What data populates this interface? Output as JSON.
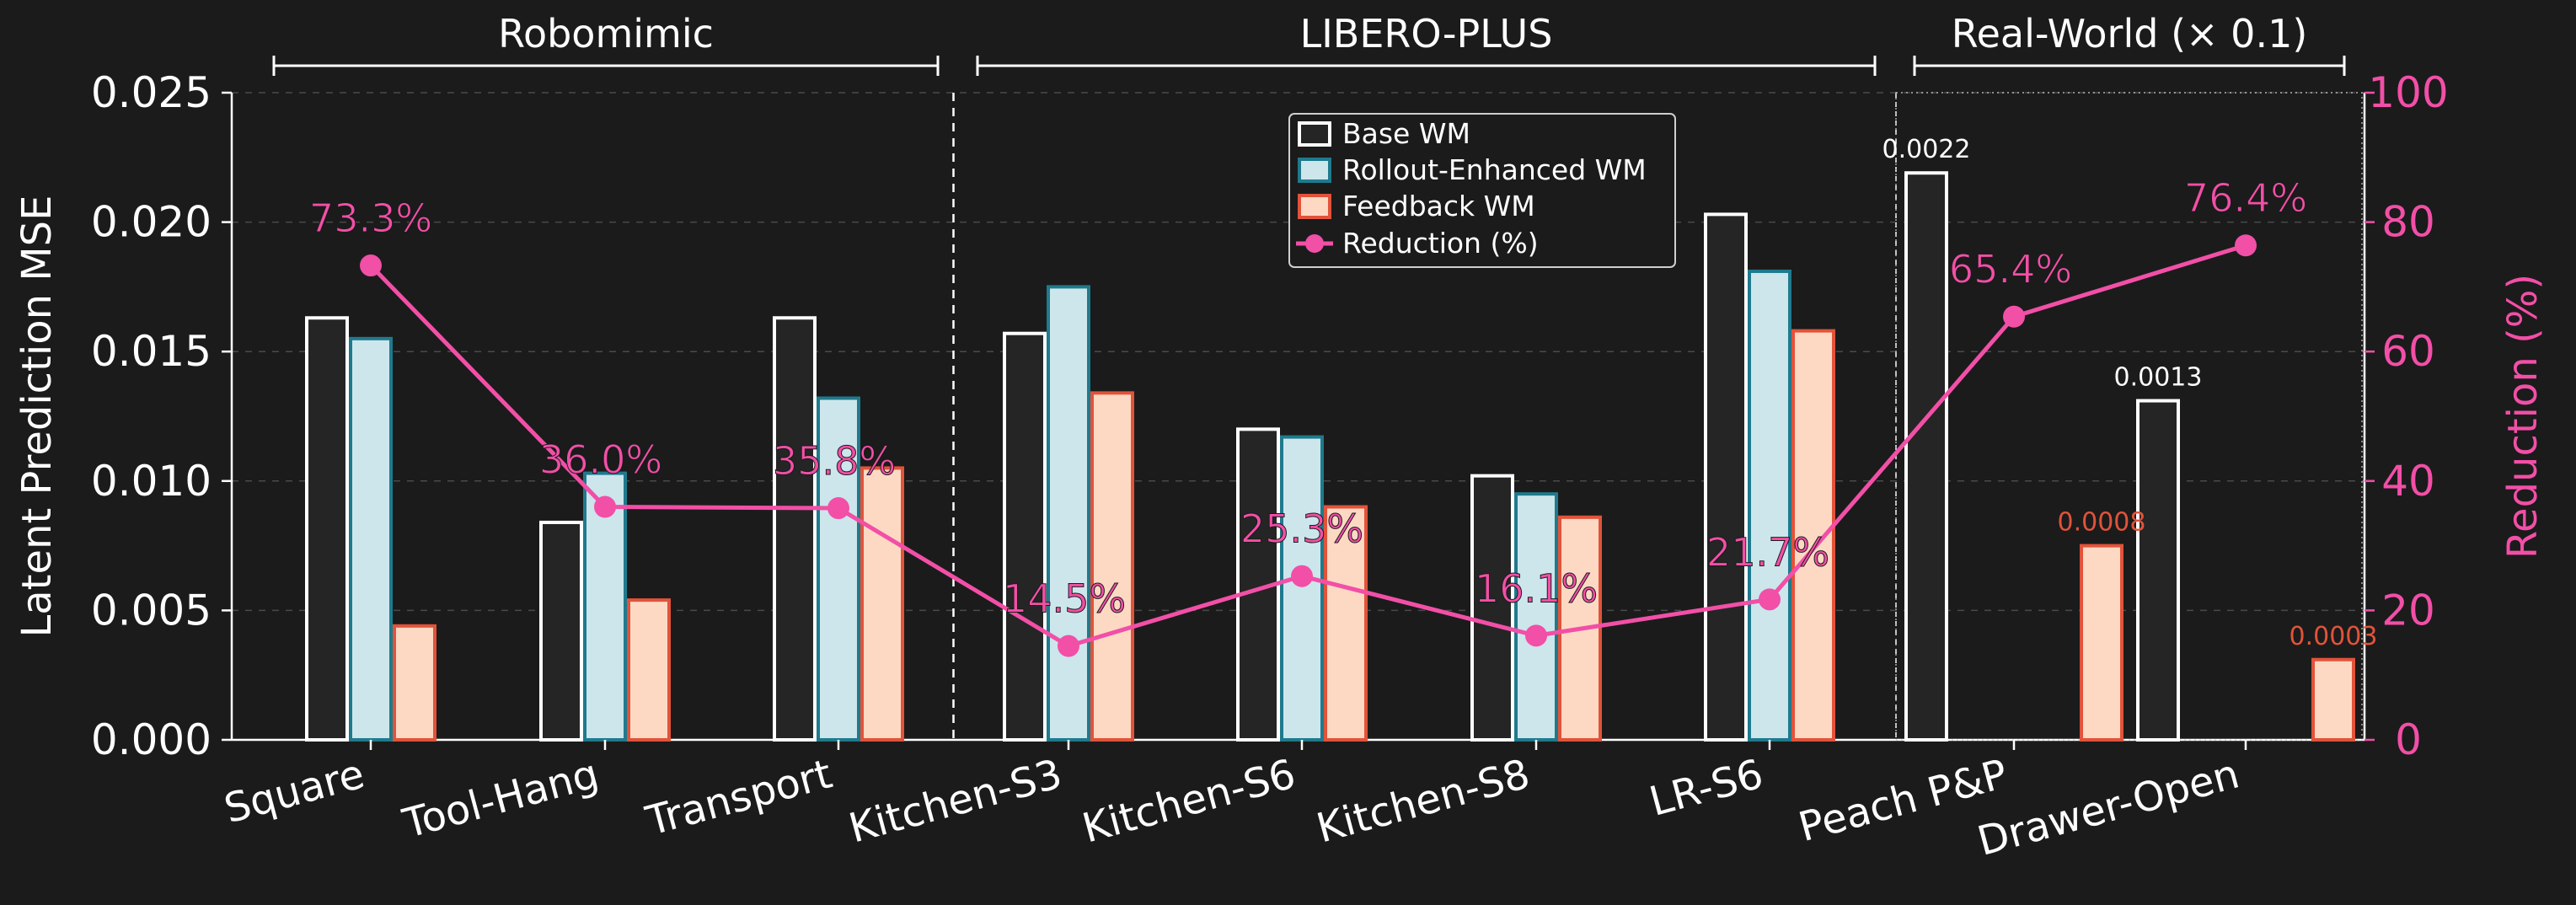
{
  "chart_data": {
    "type": "bar",
    "categories": [
      "Square",
      "Tool-Hang",
      "Transport",
      "Kitchen-S3",
      "Kitchen-S6",
      "Kitchen-S8",
      "LR-S6",
      "Peach P&P",
      "Drawer-Open"
    ],
    "groups": [
      {
        "label": "Robomimic",
        "start": 0,
        "end": 2
      },
      {
        "label": "LIBERO-PLUS",
        "start": 3,
        "end": 6
      },
      {
        "label": "Real-World (× 0.1)",
        "start": 7,
        "end": 8
      }
    ],
    "series": [
      {
        "name": "Base WM",
        "values": [
          0.0163,
          0.0084,
          0.0163,
          0.0157,
          0.012,
          0.0102,
          0.0203,
          0.0219,
          0.0131
        ]
      },
      {
        "name": "Rollout-Enhanced WM",
        "values": [
          0.0155,
          0.0103,
          0.0132,
          0.0175,
          0.0117,
          0.0095,
          0.0181,
          null,
          null
        ]
      },
      {
        "name": "Feedback WM",
        "values": [
          0.0044,
          0.0054,
          0.0105,
          0.0134,
          0.009,
          0.0086,
          0.0158,
          0.0075,
          0.0031
        ]
      }
    ],
    "reduction": {
      "name": "Reduction (%)",
      "values": [
        73.3,
        36.0,
        35.8,
        14.5,
        25.3,
        16.1,
        21.7,
        65.4,
        76.4
      ],
      "labels": [
        "73.3%",
        "36.0%",
        "35.8%",
        "14.5%",
        "25.3%",
        "16.1%",
        "21.7%",
        "65.4%",
        "76.4%"
      ]
    },
    "bar_value_labels": [
      {
        "category": 7,
        "series": 0,
        "text": "0.0022"
      },
      {
        "category": 7,
        "series": 2,
        "text": "0.0008"
      },
      {
        "category": 8,
        "series": 0,
        "text": "0.0013"
      },
      {
        "category": 8,
        "series": 2,
        "text": "0.0003"
      }
    ],
    "ylabel": "Latent Prediction MSE",
    "y2label": "Reduction (%)",
    "ylim": [
      0,
      0.025
    ],
    "y2lim": [
      0,
      100
    ],
    "yticks": [
      "0.000",
      "0.005",
      "0.010",
      "0.015",
      "0.020",
      "0.025"
    ],
    "y2ticks": [
      "0",
      "20",
      "40",
      "60",
      "80",
      "100"
    ],
    "legend_position": "top-center",
    "grid": true,
    "colors": {
      "background": "#1b1b1b",
      "base_fill": "#252525",
      "base_edge": "#ffffff",
      "rollout_fill": "#cce6ec",
      "rollout_edge": "#1f7a8c",
      "feedback_fill": "#fdd9c4",
      "feedback_edge": "#e1533a",
      "reduction": "#f24fa7"
    }
  }
}
